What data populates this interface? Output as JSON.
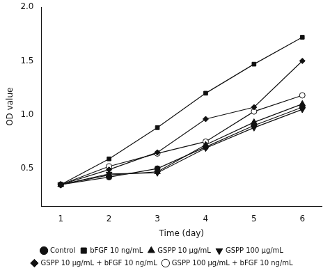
{
  "chart_data": {
    "type": "line",
    "x_label": "Time (day)",
    "y_label": "OD value",
    "x": [
      1,
      2,
      3,
      4,
      5,
      6
    ],
    "series": [
      {
        "name": "Control",
        "color": "#111111",
        "marker": "circle",
        "line_style": "solid",
        "values": [
          0.35,
          0.42,
          0.5,
          0.7,
          0.9,
          1.07
        ]
      },
      {
        "name": "bFGF 10 ng/mL",
        "color": "#111111",
        "marker": "square",
        "line_style": "solid",
        "values": [
          0.35,
          0.59,
          0.88,
          1.2,
          1.47,
          1.72
        ]
      },
      {
        "name": "GSPP 10 μg/mL",
        "color": "#111111",
        "marker": "triangle",
        "line_style": "solid",
        "values": [
          0.35,
          0.44,
          0.47,
          0.72,
          0.93,
          1.1
        ]
      },
      {
        "name": "GSPP 100 μg/mL",
        "color": "#111111",
        "marker": "triangle-down",
        "line_style": "solid",
        "values": [
          0.35,
          0.45,
          0.46,
          0.69,
          0.88,
          1.05
        ]
      },
      {
        "name": "GSPP 10 μg/mL + bFGF 10 ng/mL",
        "color": "#111111",
        "marker": "diamond",
        "line_style": "solid",
        "values": [
          0.35,
          0.49,
          0.65,
          0.96,
          1.07,
          1.5
        ]
      },
      {
        "name": "GSPP 100 μg/mL + bFGF 10 ng/mL",
        "color": "#111111",
        "marker": "open-circle",
        "line_style": "solid",
        "values": [
          0.35,
          0.52,
          0.64,
          0.75,
          1.03,
          1.18
        ]
      }
    ],
    "xlim": [
      0.6,
      6.4
    ],
    "xticks": [
      1,
      2,
      3,
      4,
      5,
      6
    ],
    "ylim": [
      0.15,
      2.0
    ],
    "yticks": [
      0.5,
      {
        "value": 1.0,
        "label": "1.0"
      },
      1.5,
      {
        "value": 2.0,
        "label": "2.0"
      }
    ],
    "grid": false,
    "legend": "bottom"
  }
}
